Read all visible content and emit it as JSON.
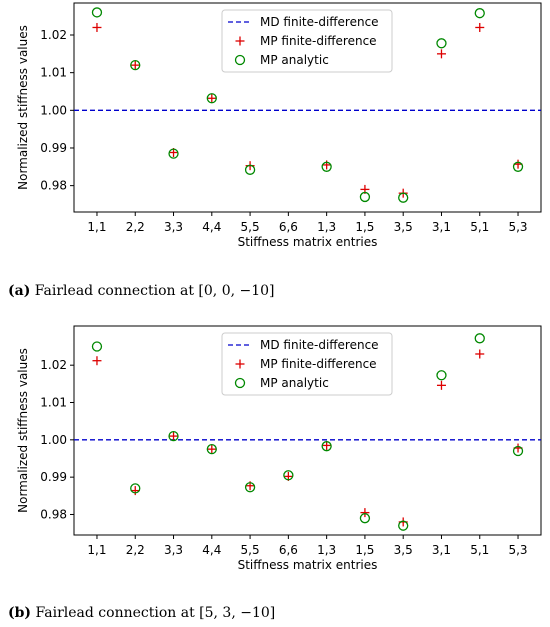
{
  "chart_data": [
    {
      "type": "scatter",
      "caption": {
        "letter": "(a)",
        "text": "Fairlead connection at [0, 0, −10]"
      },
      "xlabel": "Stiffness matrix entries",
      "ylabel": "Normalized stiffness values",
      "categories": [
        "1,1",
        "2,2",
        "3,3",
        "4,4",
        "5,5",
        "6,6",
        "1,3",
        "1,5",
        "3,5",
        "3,1",
        "5,1",
        "5,3"
      ],
      "ylim": [
        0.973,
        1.0285
      ],
      "yticks": [
        "0.98",
        "0.99",
        "1.00",
        "1.01",
        "1.02"
      ],
      "ytick_values": [
        0.98,
        0.99,
        1.0,
        1.01,
        1.02
      ],
      "legend_position": "top-center",
      "series": [
        {
          "name": "MD finite-difference",
          "style": "dashed-line",
          "color": "#0000cc",
          "values": [
            1.0,
            1.0,
            1.0,
            1.0,
            1.0,
            1.0,
            1.0,
            1.0,
            1.0,
            1.0,
            1.0,
            1.0
          ]
        },
        {
          "name": "MP finite-difference",
          "style": "plus",
          "color": "#dd0000",
          "values": [
            1.022,
            1.012,
            0.9888,
            1.0032,
            0.9853,
            null,
            0.9855,
            0.979,
            0.978,
            1.015,
            1.022,
            0.9857
          ]
        },
        {
          "name": "MP analytic",
          "style": "circle",
          "color": "#008800",
          "values": [
            1.026,
            1.012,
            0.9885,
            1.0032,
            0.9842,
            null,
            0.985,
            0.977,
            0.9768,
            1.0178,
            1.0258,
            0.985
          ]
        }
      ]
    },
    {
      "type": "scatter",
      "caption": {
        "letter": "(b)",
        "text": "Fairlead connection at [5, 3, −10]"
      },
      "xlabel": "Stiffness matrix entries",
      "ylabel": "Normalized stiffness values",
      "categories": [
        "1,1",
        "2,2",
        "3,3",
        "4,4",
        "5,5",
        "6,6",
        "1,3",
        "1,5",
        "3,5",
        "3,1",
        "5,1",
        "5,3"
      ],
      "ylim": [
        0.9745,
        1.0305
      ],
      "yticks": [
        "0.98",
        "0.99",
        "1.00",
        "1.01",
        "1.02"
      ],
      "ytick_values": [
        0.98,
        0.99,
        1.0,
        1.01,
        1.02
      ],
      "legend_position": "top-center",
      "series": [
        {
          "name": "MD finite-difference",
          "style": "dashed-line",
          "color": "#0000cc",
          "values": [
            1.0,
            1.0,
            1.0,
            1.0,
            1.0,
            1.0,
            1.0,
            1.0,
            1.0,
            1.0,
            1.0,
            1.0
          ]
        },
        {
          "name": "MP finite-difference",
          "style": "plus",
          "color": "#dd0000",
          "values": [
            1.0212,
            0.9864,
            1.001,
            0.9975,
            0.9877,
            0.9902,
            0.9985,
            0.9805,
            0.978,
            1.0146,
            1.023,
            0.9978
          ]
        },
        {
          "name": "MP analytic",
          "style": "circle",
          "color": "#008800",
          "values": [
            1.025,
            0.987,
            1.001,
            0.9975,
            0.9873,
            0.9905,
            0.9983,
            0.979,
            0.977,
            1.0173,
            1.0272,
            0.997
          ]
        }
      ]
    }
  ]
}
